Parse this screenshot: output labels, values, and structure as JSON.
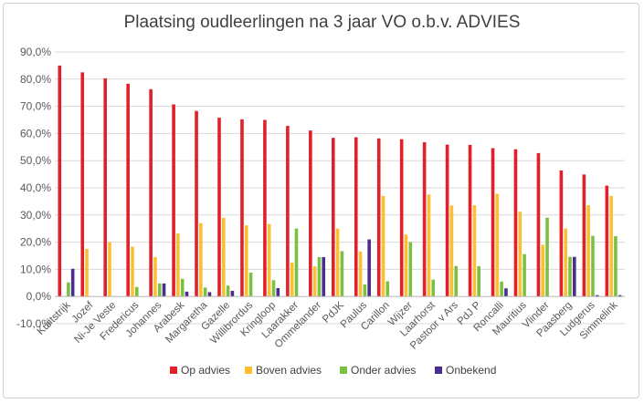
{
  "chart_data": {
    "type": "bar",
    "title": "Plaatsing oudleerlingen na 3 jaar VO o.b.v. ADVIES",
    "xlabel": "",
    "ylabel": "",
    "ylim": [
      -10,
      90
    ],
    "yticks": [
      -10,
      0,
      10,
      20,
      30,
      40,
      50,
      60,
      70,
      80,
      90
    ],
    "ytick_labels": [
      "-10,0%",
      "0,0%",
      "10,0%",
      "20,0%",
      "30,0%",
      "40,0%",
      "50,0%",
      "60,0%",
      "70,0%",
      "80,0%",
      "90,0%"
    ],
    "grid": true,
    "legend_position": "bottom",
    "categories": [
      "Kuiitstrijk",
      "Jozef",
      "Ni-Je Veste",
      "Fredericus",
      "Johannes",
      "Arabesk",
      "Margaretha",
      "Gazelle",
      "Willibrordus",
      "Kringloop",
      "Laarakker",
      "Ommelander",
      "PdJK",
      "Paulus",
      "Carillon",
      "Wijzer",
      "Laarhorst",
      "Pastoor v Ars",
      "PdJ P",
      "Roncalli",
      "Mauritius",
      "Vlinder",
      "Paasberg",
      "Ludgerus",
      "Simmelink"
    ],
    "series": [
      {
        "name": "Op advies",
        "color": "#e2202a",
        "values": [
          85,
          82.5,
          80.3,
          78.3,
          76.3,
          70.7,
          68.3,
          65.8,
          65.2,
          65,
          62.8,
          61.1,
          58.4,
          58.6,
          58.2,
          57.9,
          56.8,
          55.9,
          55.8,
          54.6,
          54.2,
          52.8,
          46.4,
          44.9,
          40.8
        ]
      },
      {
        "name": "Boven advies",
        "color": "#fbbf32",
        "values": [
          0,
          17.5,
          20,
          18.3,
          14.5,
          23.2,
          27,
          29,
          26.2,
          26.7,
          12.5,
          11.1,
          25,
          16.6,
          37,
          22.8,
          37.5,
          33.5,
          33.6,
          37.8,
          31.2,
          19,
          25,
          33.6,
          37
        ]
      },
      {
        "name": "Onder advies",
        "color": "#7bc043",
        "values": [
          5.2,
          0,
          0,
          3.5,
          4.8,
          6.5,
          3.3,
          4,
          8.8,
          6,
          25,
          14.5,
          16.7,
          4.4,
          5.6,
          20,
          6.2,
          11.2,
          11.2,
          5.5,
          15.6,
          29,
          14.6,
          22.3,
          22.2
        ]
      },
      {
        "name": "Onbekend",
        "color": "#4b2d8c",
        "values": [
          10.2,
          0,
          0,
          0,
          4.8,
          1.8,
          1.6,
          2.1,
          0,
          3.1,
          0,
          14.5,
          0,
          21,
          0,
          0,
          0,
          0,
          0,
          3,
          0,
          0,
          14.6,
          0.5,
          0.5
        ]
      }
    ]
  }
}
